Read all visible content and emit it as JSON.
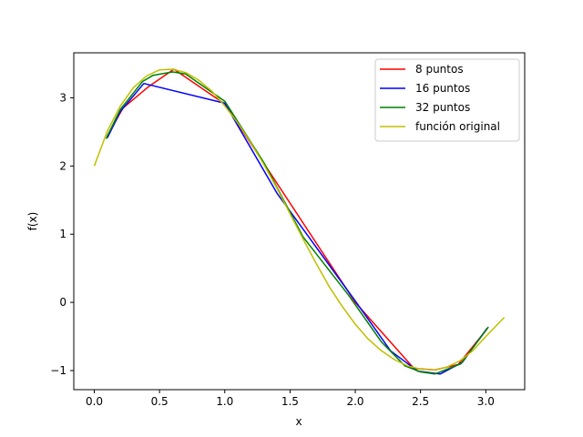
{
  "chart_data": {
    "type": "line",
    "title": "",
    "xlabel": "x",
    "ylabel": "f(x)",
    "xlim": [
      -0.157,
      3.298
    ],
    "ylim": [
      -1.28,
      3.66
    ],
    "xticks": [
      0.0,
      0.5,
      1.0,
      1.5,
      2.0,
      2.5,
      3.0
    ],
    "xtick_labels": [
      "0.0",
      "0.5",
      "1.0",
      "1.5",
      "2.0",
      "2.5",
      "3.0"
    ],
    "yticks": [
      -1,
      0,
      1,
      2,
      3
    ],
    "ytick_labels": [
      "−1",
      "0",
      "1",
      "2",
      "3"
    ],
    "grid": false,
    "legend_position": "top-right",
    "series": [
      {
        "name": "8 puntos",
        "color": "#ff0000",
        "x": [
          0.1,
          0.22,
          0.42,
          0.61,
          1.0,
          2.0,
          2.45,
          2.61,
          2.79,
          3.01
        ],
        "y": [
          2.44,
          2.85,
          3.17,
          3.42,
          2.91,
          0.0,
          -0.97,
          -0.99,
          -0.91,
          -0.39
        ]
      },
      {
        "name": "16 puntos",
        "color": "#0000ff",
        "x": [
          0.1,
          0.2,
          0.38,
          1.0,
          1.4,
          2.0,
          2.27,
          2.48,
          2.65,
          2.82,
          3.01
        ],
        "y": [
          2.41,
          2.8,
          3.21,
          2.92,
          1.6,
          0.02,
          -0.71,
          -1.01,
          -1.05,
          -0.88,
          -0.38
        ]
      },
      {
        "name": "32 puntos",
        "color": "#008000",
        "x": [
          0.09,
          0.2,
          0.37,
          0.45,
          0.6,
          0.7,
          1.0,
          1.3,
          1.6,
          1.95,
          2.2,
          2.38,
          2.5,
          2.61,
          2.81,
          3.02
        ],
        "y": [
          2.4,
          2.83,
          3.24,
          3.33,
          3.38,
          3.35,
          2.95,
          2.05,
          0.96,
          0.1,
          -0.58,
          -0.93,
          -1.02,
          -1.05,
          -0.9,
          -0.36
        ]
      },
      {
        "name": "función original",
        "color": "#bfbf00",
        "x": [
          0.0,
          0.1,
          0.2,
          0.3,
          0.4,
          0.5,
          0.6,
          0.7,
          0.8,
          0.9,
          1.0,
          1.1,
          1.2,
          1.3,
          1.4,
          1.5,
          1.6,
          1.7,
          1.8,
          1.9,
          2.0,
          2.1,
          2.2,
          2.3,
          2.4,
          2.5,
          2.6,
          2.7,
          2.8,
          2.9,
          3.0,
          3.1416
        ],
        "y": [
          2.0,
          2.51,
          2.88,
          3.15,
          3.32,
          3.41,
          3.42,
          3.37,
          3.26,
          3.1,
          2.88,
          2.63,
          2.34,
          2.02,
          1.67,
          1.3,
          0.93,
          0.57,
          0.23,
          -0.06,
          -0.32,
          -0.54,
          -0.71,
          -0.84,
          -0.93,
          -0.98,
          -0.99,
          -0.95,
          -0.86,
          -0.71,
          -0.5,
          -0.22
        ]
      }
    ]
  }
}
